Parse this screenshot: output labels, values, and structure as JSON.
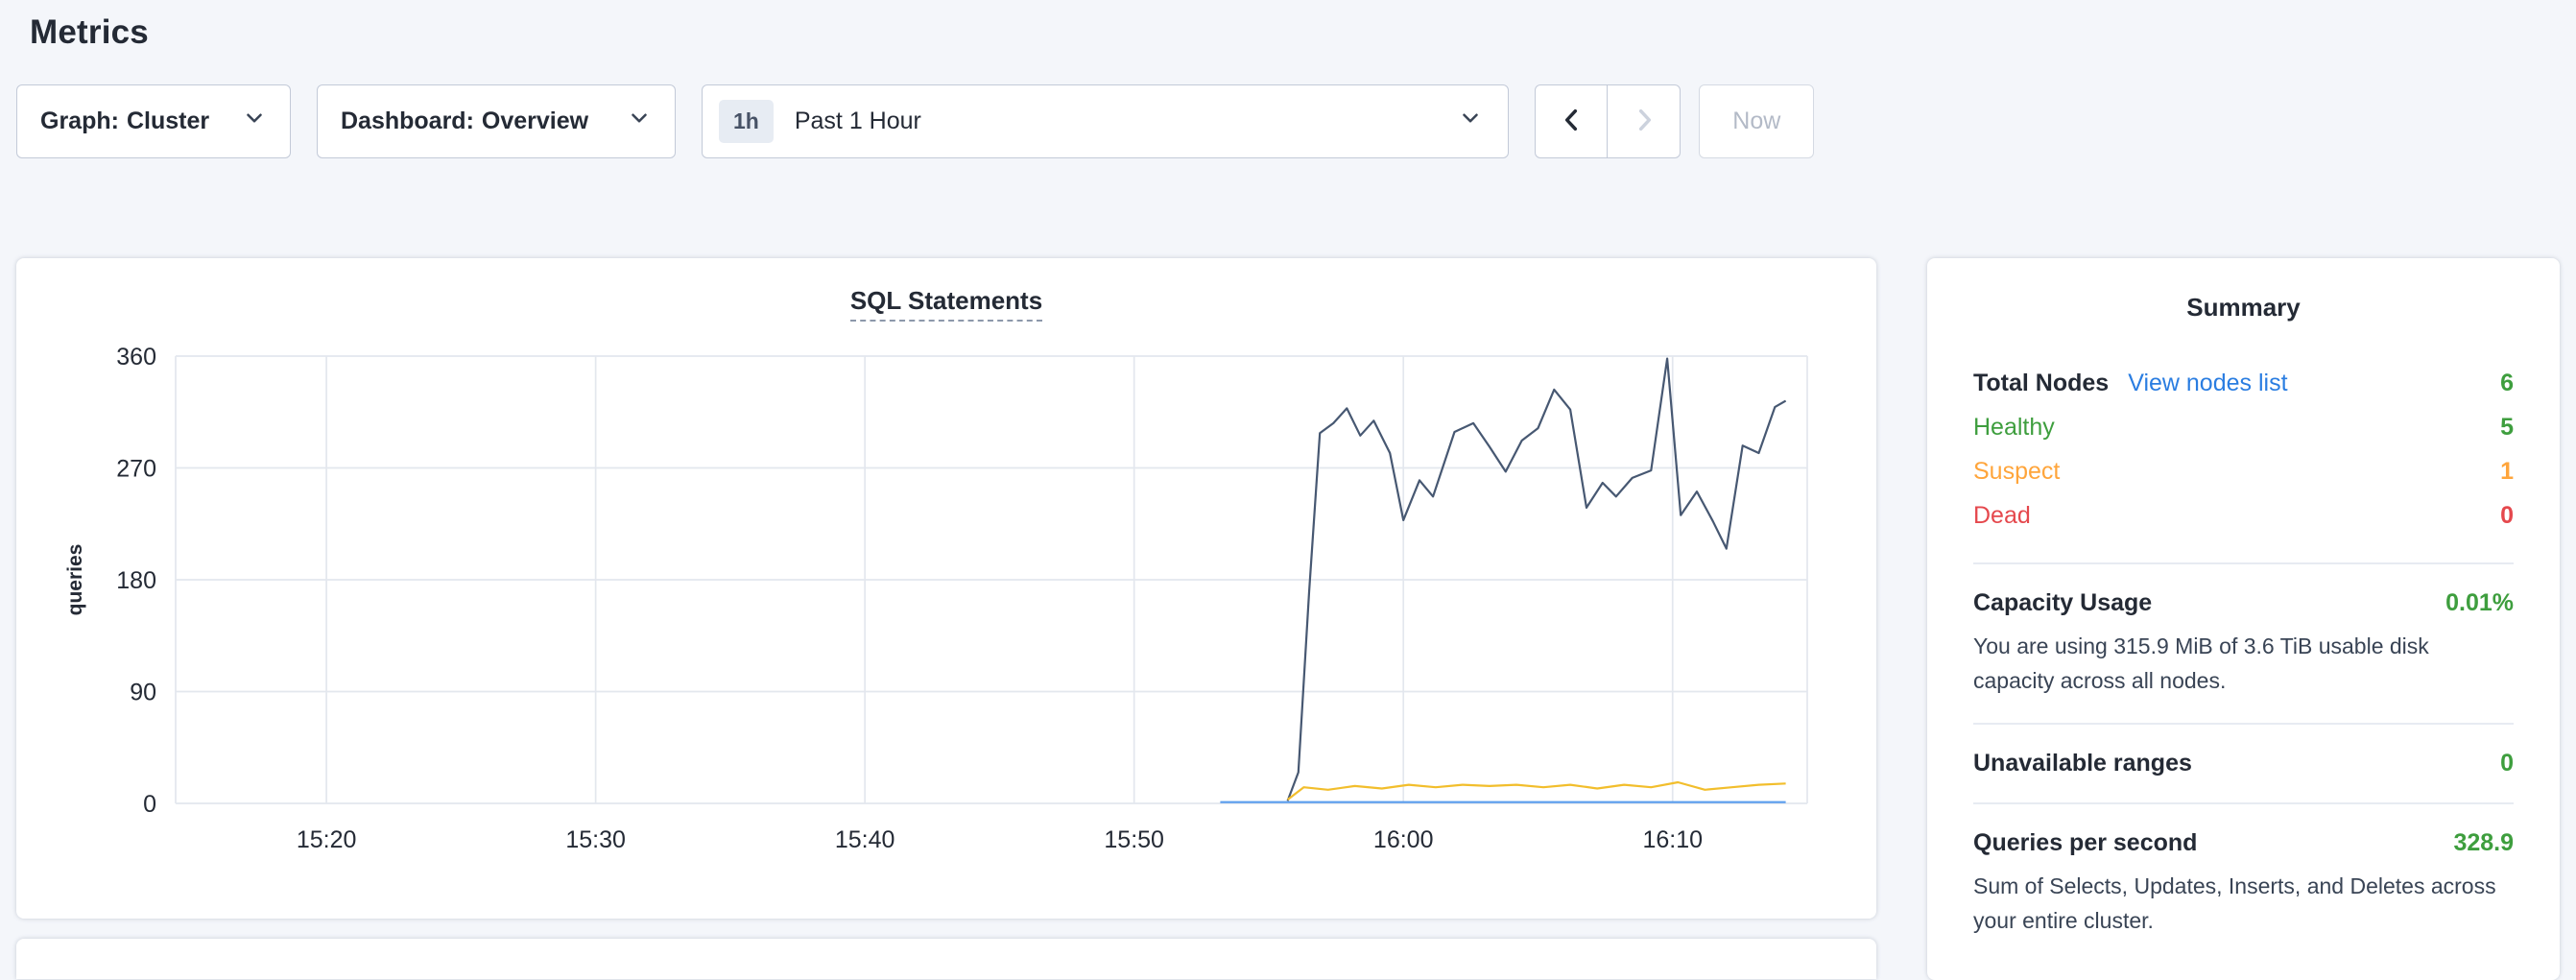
{
  "page": {
    "title": "Metrics"
  },
  "toolbar": {
    "graph_dropdown": {
      "prefix": "Graph:",
      "value": "Cluster"
    },
    "dashboard_dropdown": {
      "prefix": "Dashboard:",
      "value": "Overview"
    },
    "time_range": {
      "badge": "1h",
      "label": "Past 1 Hour"
    },
    "now_label": "Now"
  },
  "chart_card": {
    "title": "SQL Statements"
  },
  "chart_data": {
    "type": "line",
    "title": "SQL Statements",
    "ylabel": "queries",
    "ylim": [
      0,
      360
    ],
    "yticks": [
      0,
      90,
      180,
      270,
      360
    ],
    "x_domain_minutes": [
      914.4,
      975
    ],
    "xticks": [
      {
        "m": 920,
        "label": "15:20"
      },
      {
        "m": 930,
        "label": "15:30"
      },
      {
        "m": 940,
        "label": "15:40"
      },
      {
        "m": 950,
        "label": "15:50"
      },
      {
        "m": 960,
        "label": "16:00"
      },
      {
        "m": 970,
        "label": "16:10"
      }
    ],
    "grid": true,
    "legend": "none",
    "series": [
      {
        "name": "dark-blue-series",
        "color": "#475872",
        "points": [
          [
            955.7,
            2
          ],
          [
            956.1,
            25
          ],
          [
            956.5,
            170
          ],
          [
            956.9,
            298
          ],
          [
            957.4,
            306
          ],
          [
            957.9,
            318
          ],
          [
            958.4,
            296
          ],
          [
            958.9,
            308
          ],
          [
            959.5,
            282
          ],
          [
            960.0,
            228
          ],
          [
            960.6,
            260
          ],
          [
            961.1,
            247
          ],
          [
            961.9,
            299
          ],
          [
            962.6,
            306
          ],
          [
            963.2,
            287
          ],
          [
            963.8,
            267
          ],
          [
            964.4,
            292
          ],
          [
            965.0,
            302
          ],
          [
            965.6,
            333
          ],
          [
            966.2,
            317
          ],
          [
            966.8,
            238
          ],
          [
            967.4,
            258
          ],
          [
            967.9,
            247
          ],
          [
            968.5,
            262
          ],
          [
            969.2,
            268
          ],
          [
            969.8,
            358
          ],
          [
            970.3,
            232
          ],
          [
            970.9,
            251
          ],
          [
            971.5,
            227
          ],
          [
            972.0,
            205
          ],
          [
            972.6,
            288
          ],
          [
            973.2,
            282
          ],
          [
            973.8,
            319
          ],
          [
            974.2,
            324
          ]
        ]
      },
      {
        "name": "yellow-series",
        "color": "#f2be2c",
        "points": [
          [
            955.7,
            3
          ],
          [
            956.3,
            13
          ],
          [
            957.2,
            11
          ],
          [
            958.2,
            14
          ],
          [
            959.2,
            12
          ],
          [
            960.2,
            15
          ],
          [
            961.2,
            13
          ],
          [
            962.2,
            15
          ],
          [
            963.2,
            14
          ],
          [
            964.2,
            15
          ],
          [
            965.2,
            13
          ],
          [
            966.2,
            15
          ],
          [
            967.2,
            12
          ],
          [
            968.2,
            15
          ],
          [
            969.2,
            13
          ],
          [
            970.2,
            17
          ],
          [
            971.2,
            11
          ],
          [
            972.2,
            13
          ],
          [
            973.2,
            15
          ],
          [
            974.2,
            16
          ]
        ]
      },
      {
        "name": "light-blue-series",
        "color": "#5a9ded",
        "points": [
          [
            953.2,
            1
          ],
          [
            974.2,
            1
          ]
        ]
      }
    ]
  },
  "summary": {
    "title": "Summary",
    "total_nodes": {
      "label": "Total Nodes",
      "link": "View nodes list",
      "value": "6"
    },
    "statuses": [
      {
        "label": "Healthy",
        "value": "5",
        "color": "#3e9e3e"
      },
      {
        "label": "Suspect",
        "value": "1",
        "color": "#ffa53b"
      },
      {
        "label": "Dead",
        "value": "0",
        "color": "#e5484d"
      }
    ],
    "capacity": {
      "label": "Capacity Usage",
      "value": "0.01%",
      "desc": "You are using 315.9 MiB of 3.6 TiB usable disk capacity across all nodes."
    },
    "unavailable": {
      "label": "Unavailable ranges",
      "value": "0"
    },
    "qps": {
      "label": "Queries per second",
      "value": "328.9",
      "desc": "Sum of Selects, Updates, Inserts, and Deletes across your entire cluster."
    }
  },
  "colors": {
    "green": "#3e9e3e",
    "amber": "#ffa53b",
    "red": "#e5484d",
    "link": "#2a7de1",
    "dark_text": "#242a35",
    "grid_line": "#e3e7ee"
  }
}
